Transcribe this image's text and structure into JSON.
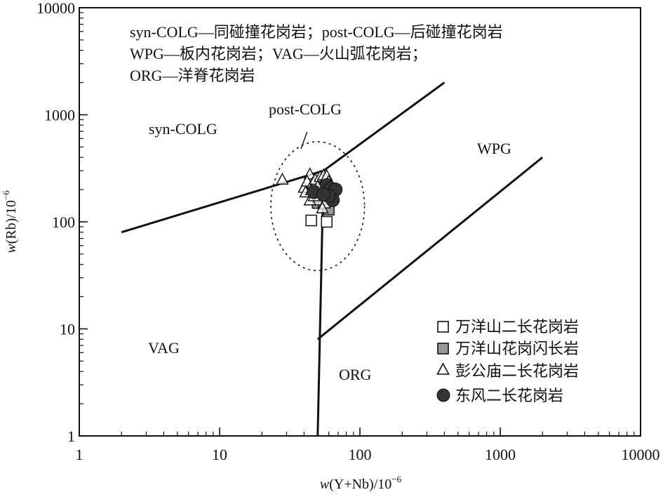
{
  "chart_data": {
    "type": "scatter",
    "x_scale": "log",
    "y_scale": "log",
    "xlim": [
      1,
      10000
    ],
    "ylim": [
      1,
      10000
    ],
    "x_ticks": [
      "1",
      "10",
      "100",
      "1000",
      "10000"
    ],
    "y_ticks": [
      "1",
      "10",
      "100",
      "1000",
      "10000"
    ],
    "xlabel": {
      "italic": "w",
      "text": "(Y+Nb)/10",
      "sup": "−6"
    },
    "ylabel": {
      "italic": "w",
      "text": "(Rb)/10",
      "sup": "−6"
    },
    "notes": [
      "syn-COLG—同碰撞花岗岩；post-COLG—后碰撞花岗岩",
      "WPG—板内花岗岩；VAG—火山弧花岗岩；",
      "ORG—洋脊花岗岩"
    ],
    "field_labels": {
      "syn_colg": "syn-COLG",
      "post_colg": "post-COLG",
      "wpg": "WPG",
      "vag": "VAG",
      "org": "ORG"
    },
    "boundaries": [
      {
        "name": "syn-colg-vag",
        "points": [
          [
            2,
            80
          ],
          [
            55,
            300
          ]
        ]
      },
      {
        "name": "syn-colg-wpg",
        "points": [
          [
            55,
            300
          ],
          [
            400,
            2000
          ]
        ]
      },
      {
        "name": "vag-org",
        "points": [
          [
            55,
            300
          ],
          [
            50,
            1
          ]
        ]
      },
      {
        "name": "org-wpg",
        "points": [
          [
            50,
            8
          ],
          [
            2000,
            400
          ]
        ]
      }
    ],
    "post_colg_circle": {
      "center": [
        50,
        140
      ],
      "x_range": [
        23,
        107
      ],
      "y_range": [
        35,
        560
      ]
    },
    "post_colg_pointer": [
      [
        38,
        480
      ],
      [
        42,
        690
      ]
    ],
    "legend_position": "bottom-right",
    "series": [
      {
        "name": "万洋山二长花岗岩",
        "marker": "square",
        "fill": "#ffffff",
        "points": [
          [
            45,
            103
          ],
          [
            58,
            100
          ],
          [
            56,
            160
          ]
        ]
      },
      {
        "name": "万洋山花岗闪长岩",
        "marker": "square",
        "fill": "#999999",
        "points": [
          [
            50,
            150
          ],
          [
            55,
            148
          ],
          [
            60,
            130
          ],
          [
            52,
            170
          ],
          [
            47,
            190
          ]
        ]
      },
      {
        "name": "彭公庙二长花岗岩",
        "marker": "triangle",
        "fill": "#ffffff",
        "points": [
          [
            28,
            250
          ],
          [
            44,
            280
          ],
          [
            40,
            210
          ],
          [
            42,
            240
          ],
          [
            46,
            230
          ],
          [
            48,
            250
          ],
          [
            52,
            265
          ],
          [
            55,
            275
          ],
          [
            58,
            270
          ],
          [
            60,
            240
          ],
          [
            50,
            160
          ],
          [
            44,
            160
          ],
          [
            41,
            190
          ],
          [
            56,
            150
          ],
          [
            54,
            135
          ],
          [
            47,
            175
          ],
          [
            62,
            220
          ],
          [
            50,
            215
          ],
          [
            45,
            200
          ]
        ]
      },
      {
        "name": "东风二长花岗岩",
        "marker": "circle",
        "fill": "#333333",
        "points": [
          [
            47,
            190
          ],
          [
            58,
            220
          ],
          [
            62,
            205
          ],
          [
            67,
            200
          ],
          [
            64,
            160
          ],
          [
            60,
            175
          ],
          [
            55,
            180
          ]
        ]
      }
    ]
  }
}
